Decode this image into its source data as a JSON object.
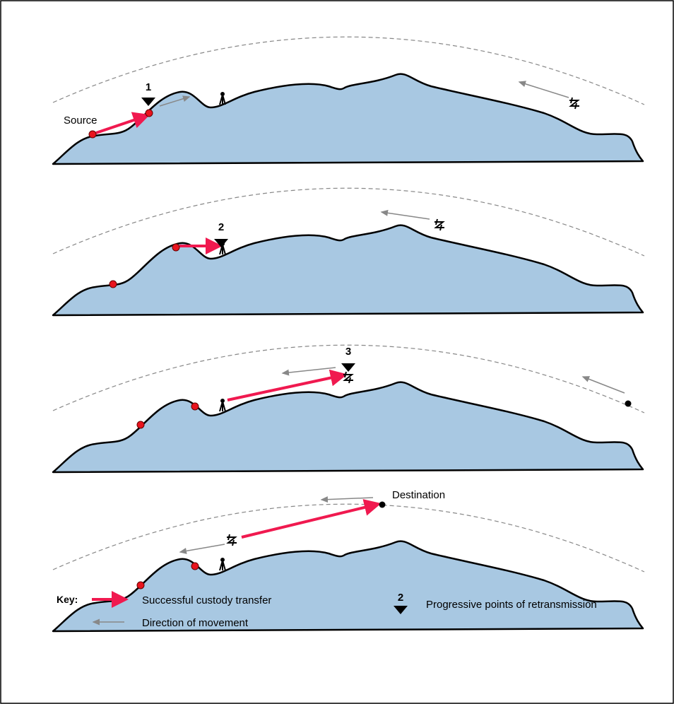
{
  "labels": {
    "source": "Source",
    "points": [
      "1",
      "2",
      "3"
    ],
    "destination": "Destination"
  },
  "key": {
    "title": "Key:",
    "transfer": "Successful custody transfer",
    "movement": "Direction of movement",
    "sample_point": "2",
    "retransmission": "Progressive points of retransmission"
  }
}
